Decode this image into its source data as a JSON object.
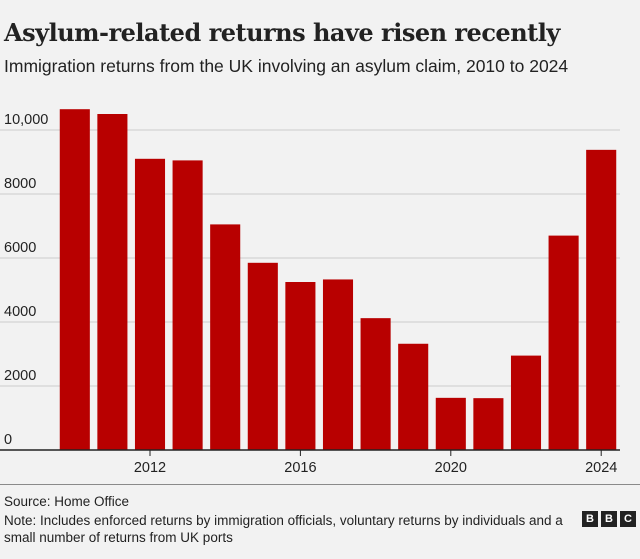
{
  "title": "Asylum-related returns have risen recently",
  "subtitle": "Immigration returns from the UK involving an asylum claim, 2010 to 2024",
  "source": "Source: Home Office",
  "note": "Note: Includes enforced returns by immigration officials, voluntary returns by individuals and a small number of returns from UK ports",
  "logo": {
    "letters": [
      "B",
      "B",
      "C"
    ]
  },
  "chart_data": {
    "type": "bar",
    "title": "Asylum-related returns have risen recently",
    "subtitle": "Immigration returns from the UK involving an asylum claim, 2010 to 2024",
    "categories": [
      "2010",
      "2011",
      "2012",
      "2013",
      "2014",
      "2015",
      "2016",
      "2017",
      "2018",
      "2019",
      "2020",
      "2021",
      "2022",
      "2023",
      "2024"
    ],
    "values": [
      10650,
      10500,
      9100,
      9050,
      7050,
      5850,
      5250,
      5330,
      4120,
      3320,
      1630,
      1620,
      2950,
      6700,
      9380
    ],
    "x_tick_labels": [
      "2012",
      "2016",
      "2020",
      "2024"
    ],
    "y_ticks": [
      0,
      2000,
      4000,
      6000,
      8000,
      10000
    ],
    "y_tick_labels": [
      "0",
      "2000",
      "4000",
      "6000",
      "8000",
      "10,000"
    ],
    "ylim": [
      0,
      11000
    ],
    "xlabel": "",
    "ylabel": "",
    "bar_color": "#b80000",
    "grid": true,
    "legend": "none"
  }
}
